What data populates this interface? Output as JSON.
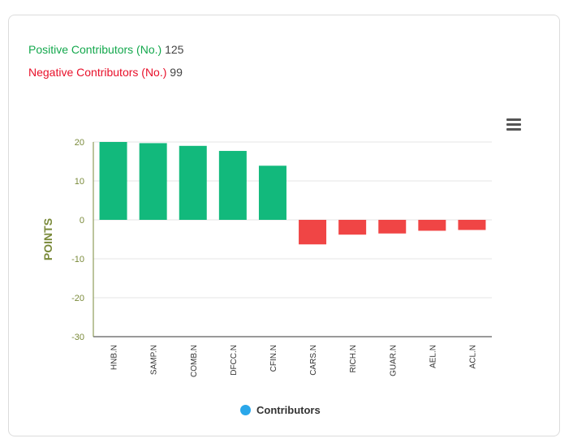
{
  "stats": {
    "positive_label": "Positive Contributors (No.)",
    "positive_value": "125",
    "negative_label": "Negative Contributors (No.)",
    "negative_value": "99"
  },
  "colors": {
    "positive": "#12b97c",
    "negative": "#f04545",
    "axis_text": "#7a8a3a",
    "legend_dot": "#2aa7ea"
  },
  "chart_data": {
    "type": "bar",
    "title": "",
    "xlabel": "",
    "ylabel": "POINTS",
    "ylim": [
      -30,
      20
    ],
    "yticks": [
      20,
      10,
      0,
      -10,
      -20,
      -30
    ],
    "categories": [
      "HNB.N",
      "SAMP.N",
      "COMB.N",
      "DFCC.N",
      "CFIN.N",
      "CARS.N",
      "RICH.N",
      "GUAR.N",
      "AEL.N",
      "ACL.N"
    ],
    "series": [
      {
        "name": "Contributors",
        "values": [
          20.0,
          19.7,
          19.0,
          17.7,
          13.9,
          -6.3,
          -3.8,
          -3.5,
          -2.8,
          -2.6
        ]
      }
    ],
    "legend": "bottom-center",
    "grid": true
  },
  "legend_label": "Contributors"
}
